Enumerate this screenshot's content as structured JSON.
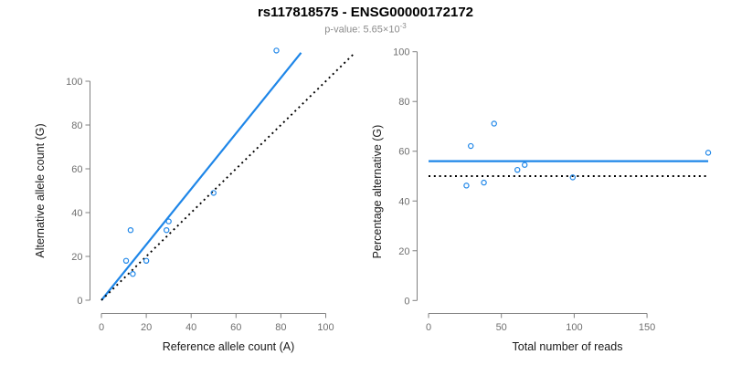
{
  "figure": {
    "title": "rs117818575 - ENSG00000172172",
    "subtitle_prefix": "p-value: 5.65×10",
    "subtitle_exponent": "-3"
  },
  "colors": {
    "title": "#000000",
    "subtitle": "#8c8c8c",
    "accent_blue": "#1e86e8",
    "reference_black": "#000000",
    "axis_line": "#808080",
    "tick_label": "#6f6f6f",
    "axis_title": "#1a1a1a"
  },
  "chart_data": [
    {
      "name": "allele-counts-scatter",
      "type": "scatter",
      "xlabel": "Reference allele count (A)",
      "ylabel": "Alternative allele count (G)",
      "xticks": [
        0,
        20,
        40,
        60,
        80,
        100
      ],
      "yticks": [
        0,
        20,
        40,
        60,
        80,
        100
      ],
      "xlim": [
        0,
        100
      ],
      "ylim": [
        0,
        100
      ],
      "grid": false,
      "legend": "none",
      "points": [
        [
          11,
          18
        ],
        [
          13,
          32
        ],
        [
          14,
          12
        ],
        [
          20,
          18
        ],
        [
          29,
          32
        ],
        [
          30,
          36
        ],
        [
          50,
          49
        ],
        [
          78,
          114
        ]
      ],
      "lines": [
        {
          "name": "regression-fit-line",
          "style": "solid",
          "color": "accent_blue",
          "from": [
            0,
            0
          ],
          "to": [
            89,
            113
          ]
        },
        {
          "name": "identity-line",
          "style": "dotted",
          "color": "reference_black",
          "from": [
            0,
            0
          ],
          "to": [
            113,
            113
          ]
        }
      ]
    },
    {
      "name": "percentage-vs-reads-scatter",
      "type": "scatter",
      "xlabel": "Total number of reads",
      "ylabel": "Percentage alternative (G)",
      "xticks": [
        0,
        50,
        100,
        150
      ],
      "yticks": [
        0,
        20,
        40,
        60,
        80,
        100
      ],
      "xlim": [
        0,
        192
      ],
      "ylim": [
        0,
        100
      ],
      "grid": false,
      "legend": "none",
      "points": [
        [
          29,
          62.1
        ],
        [
          45,
          71.1
        ],
        [
          26,
          46.2
        ],
        [
          38,
          47.4
        ],
        [
          61,
          52.5
        ],
        [
          66,
          54.5
        ],
        [
          99,
          49.5
        ],
        [
          192,
          59.4
        ]
      ],
      "lines": [
        {
          "name": "mean-percentage-line",
          "style": "solid",
          "color": "accent_blue",
          "from": [
            0,
            56
          ],
          "to": [
            192,
            56
          ]
        },
        {
          "name": "fifty-percent-line",
          "style": "dotted",
          "color": "reference_black",
          "from": [
            0,
            50
          ],
          "to": [
            192,
            50
          ]
        }
      ]
    }
  ]
}
